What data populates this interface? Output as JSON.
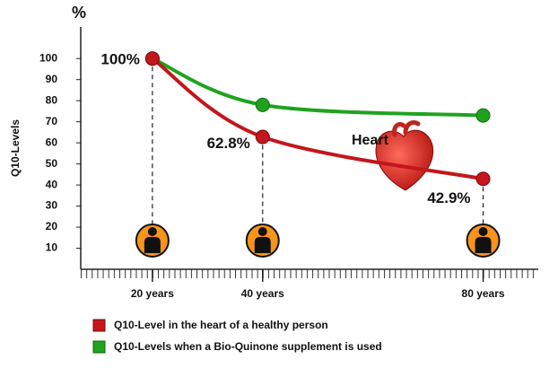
{
  "chart_data": {
    "type": "line",
    "y_unit": "%",
    "y_label": "Q10-Levels",
    "x": [
      20,
      40,
      80
    ],
    "xlim": [
      7,
      90
    ],
    "xticks": [
      {
        "value": 20,
        "label": "20 years"
      },
      {
        "value": 40,
        "label": "40 years"
      },
      {
        "value": 80,
        "label": "80 years"
      }
    ],
    "ylim": [
      0,
      115
    ],
    "yticks": [
      10,
      20,
      30,
      40,
      50,
      60,
      70,
      80,
      90,
      100
    ],
    "series": [
      {
        "name": "Q10-Level in the heart of a healthy person",
        "color": "#c4161c",
        "values": [
          100,
          62.8,
          42.9
        ],
        "value_labels": [
          "100%",
          "62.8%",
          "42.9%"
        ]
      },
      {
        "name": "Q10-Levels when a Bio-Quinone supplement is used",
        "color": "#1fa31f",
        "values": [
          100,
          78,
          73
        ]
      }
    ],
    "annotation": "Heart"
  }
}
